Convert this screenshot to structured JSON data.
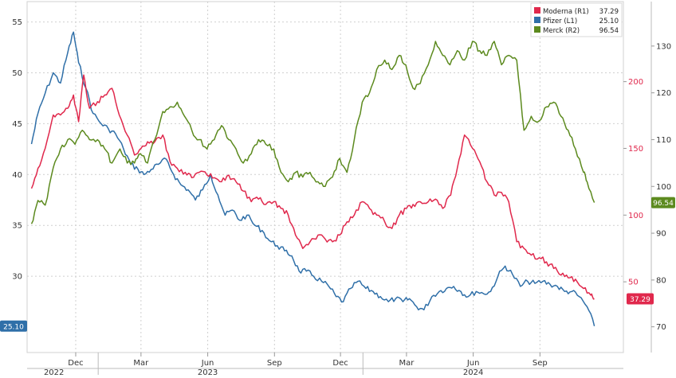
{
  "chart_data": {
    "type": "line",
    "title": "",
    "x_ticks": [
      {
        "date": "2022-12-01",
        "label": "Dec"
      },
      {
        "date": "2023-03-01",
        "label": "Mar"
      },
      {
        "date": "2023-06-01",
        "label": "Jun"
      },
      {
        "date": "2023-09-01",
        "label": "Sep"
      },
      {
        "date": "2023-12-01",
        "label": "Dec"
      },
      {
        "date": "2024-03-01",
        "label": "Mar"
      },
      {
        "date": "2024-06-01",
        "label": "Jun"
      },
      {
        "date": "2024-09-01",
        "label": "Sep"
      }
    ],
    "x_years": [
      {
        "date": "2022-11-01",
        "label": "2022"
      },
      {
        "date": "2023-06-01",
        "label": "2023"
      },
      {
        "date": "2024-06-01",
        "label": "2024"
      }
    ],
    "xlim": [
      "2022-09-25",
      "2024-12-25"
    ],
    "axes": {
      "L1": {
        "ylim": [
          22.5,
          57
        ],
        "ticks": [
          30,
          35,
          40,
          45,
          50,
          55
        ],
        "color": "#2f6fa8"
      },
      "R1": {
        "ylim": [
          -3,
          260
        ],
        "ticks": [
          50,
          100,
          150,
          200
        ],
        "color": "#e0284c"
      },
      "R2": {
        "ylim": [
          64.5,
          139.5
        ],
        "ticks": [
          70,
          80,
          90,
          100,
          110,
          120,
          130
        ],
        "color": "#5c8a1e"
      }
    },
    "legend": {
      "placement": "top-right",
      "items": [
        {
          "name": "Moderna (R1)",
          "value": "37.29",
          "color": "#e0284c"
        },
        {
          "name": "Pfizer (L1)",
          "value": "25.10",
          "color": "#2f6fa8"
        },
        {
          "name": "Merck (R2)",
          "value": "96.54",
          "color": "#5c8a1e"
        }
      ]
    },
    "last_value_tags": [
      {
        "axis": "L1",
        "value": 25.1,
        "label": "25.10",
        "color": "#2f6fa8"
      },
      {
        "axis": "R1",
        "value": 37.29,
        "label": "37.29",
        "color": "#e0284c"
      },
      {
        "axis": "R2",
        "value": 96.54,
        "label": "96.54",
        "color": "#5c8a1e"
      }
    ],
    "grid": true,
    "series": [
      {
        "key": "pfizer",
        "axis": "L1",
        "color": "#2f6fa8",
        "points": [
          [
            "2022-10-01",
            43
          ],
          [
            "2022-10-10",
            46
          ],
          [
            "2022-10-20",
            48
          ],
          [
            "2022-10-31",
            50
          ],
          [
            "2022-11-10",
            49
          ],
          [
            "2022-11-20",
            52
          ],
          [
            "2022-11-28",
            54
          ],
          [
            "2022-12-05",
            51
          ],
          [
            "2022-12-15",
            48.5
          ],
          [
            "2022-12-25",
            46
          ],
          [
            "2023-01-05",
            45
          ],
          [
            "2023-01-15",
            44.5
          ],
          [
            "2023-01-25",
            44
          ],
          [
            "2023-02-05",
            42.5
          ],
          [
            "2023-02-15",
            41
          ],
          [
            "2023-02-25",
            40.5
          ],
          [
            "2023-03-05",
            40
          ],
          [
            "2023-03-15",
            40.5
          ],
          [
            "2023-03-25",
            41
          ],
          [
            "2023-04-05",
            41.5
          ],
          [
            "2023-04-15",
            40
          ],
          [
            "2023-04-25",
            39
          ],
          [
            "2023-05-05",
            38.5
          ],
          [
            "2023-05-15",
            37.5
          ],
          [
            "2023-05-25",
            38.5
          ],
          [
            "2023-06-05",
            40
          ],
          [
            "2023-06-15",
            38
          ],
          [
            "2023-06-25",
            36
          ],
          [
            "2023-07-05",
            36.5
          ],
          [
            "2023-07-15",
            35.5
          ],
          [
            "2023-07-25",
            36
          ],
          [
            "2023-08-05",
            35
          ],
          [
            "2023-08-15",
            34.5
          ],
          [
            "2023-08-25",
            33.5
          ],
          [
            "2023-09-05",
            33
          ],
          [
            "2023-09-15",
            32.5
          ],
          [
            "2023-09-25",
            32
          ],
          [
            "2023-10-05",
            30.5
          ],
          [
            "2023-10-15",
            30.5
          ],
          [
            "2023-10-25",
            30
          ],
          [
            "2023-11-05",
            29.5
          ],
          [
            "2023-11-15",
            29
          ],
          [
            "2023-11-25",
            28
          ],
          [
            "2023-12-05",
            27.5
          ],
          [
            "2023-12-15",
            28.8
          ],
          [
            "2023-12-25",
            29.5
          ],
          [
            "2024-01-05",
            28.8
          ],
          [
            "2024-01-15",
            28.5
          ],
          [
            "2024-01-25",
            28
          ],
          [
            "2024-02-05",
            27.5
          ],
          [
            "2024-02-15",
            27.8
          ],
          [
            "2024-02-25",
            27.5
          ],
          [
            "2024-03-05",
            27.8
          ],
          [
            "2024-03-15",
            27
          ],
          [
            "2024-03-25",
            26.7
          ],
          [
            "2024-04-05",
            28
          ],
          [
            "2024-04-15",
            28.5
          ],
          [
            "2024-04-25",
            28.8
          ],
          [
            "2024-05-05",
            29
          ],
          [
            "2024-05-15",
            28.5
          ],
          [
            "2024-05-25",
            28
          ],
          [
            "2024-06-05",
            28.5
          ],
          [
            "2024-06-15",
            28.3
          ],
          [
            "2024-06-25",
            28.5
          ],
          [
            "2024-07-05",
            30
          ],
          [
            "2024-07-15",
            31
          ],
          [
            "2024-07-25",
            30.2
          ],
          [
            "2024-08-05",
            29
          ],
          [
            "2024-08-15",
            29.5
          ],
          [
            "2024-08-25",
            29.3
          ],
          [
            "2024-09-05",
            29.5
          ],
          [
            "2024-09-15",
            29.2
          ],
          [
            "2024-09-25",
            29
          ],
          [
            "2024-10-05",
            28.5
          ],
          [
            "2024-10-15",
            28.5
          ],
          [
            "2024-10-25",
            28
          ],
          [
            "2024-11-05",
            27
          ],
          [
            "2024-11-15",
            25.1
          ]
        ]
      },
      {
        "key": "moderna",
        "axis": "R1",
        "color": "#e0284c",
        "points": [
          [
            "2022-10-01",
            120
          ],
          [
            "2022-10-10",
            135
          ],
          [
            "2022-10-20",
            150
          ],
          [
            "2022-10-31",
            175
          ],
          [
            "2022-11-10",
            175
          ],
          [
            "2022-11-20",
            180
          ],
          [
            "2022-11-28",
            190
          ],
          [
            "2022-12-05",
            170
          ],
          [
            "2022-12-12",
            205
          ],
          [
            "2022-12-20",
            180
          ],
          [
            "2022-12-31",
            185
          ],
          [
            "2023-01-10",
            190
          ],
          [
            "2023-01-20",
            195
          ],
          [
            "2023-01-30",
            175
          ],
          [
            "2023-02-10",
            160
          ],
          [
            "2023-02-20",
            145
          ],
          [
            "2023-03-01",
            150
          ],
          [
            "2023-03-10",
            155
          ],
          [
            "2023-03-20",
            155
          ],
          [
            "2023-03-31",
            160
          ],
          [
            "2023-04-10",
            140
          ],
          [
            "2023-04-20",
            135
          ],
          [
            "2023-05-01",
            132
          ],
          [
            "2023-05-10",
            128
          ],
          [
            "2023-05-20",
            132
          ],
          [
            "2023-05-31",
            130
          ],
          [
            "2023-06-10",
            128
          ],
          [
            "2023-06-20",
            125
          ],
          [
            "2023-06-30",
            130
          ],
          [
            "2023-07-10",
            125
          ],
          [
            "2023-07-20",
            118
          ],
          [
            "2023-07-31",
            110
          ],
          [
            "2023-08-10",
            112
          ],
          [
            "2023-08-20",
            108
          ],
          [
            "2023-08-31",
            110
          ],
          [
            "2023-09-10",
            105
          ],
          [
            "2023-09-20",
            100
          ],
          [
            "2023-09-30",
            85
          ],
          [
            "2023-10-10",
            75
          ],
          [
            "2023-10-20",
            80
          ],
          [
            "2023-10-31",
            85
          ],
          [
            "2023-11-10",
            82
          ],
          [
            "2023-11-20",
            80
          ],
          [
            "2023-11-30",
            85
          ],
          [
            "2023-12-10",
            95
          ],
          [
            "2023-12-20",
            100
          ],
          [
            "2023-12-31",
            110
          ],
          [
            "2024-01-10",
            105
          ],
          [
            "2024-01-20",
            100
          ],
          [
            "2024-01-31",
            95
          ],
          [
            "2024-02-10",
            90
          ],
          [
            "2024-02-20",
            100
          ],
          [
            "2024-03-01",
            105
          ],
          [
            "2024-03-10",
            108
          ],
          [
            "2024-03-20",
            110
          ],
          [
            "2024-03-31",
            110
          ],
          [
            "2024-04-10",
            112
          ],
          [
            "2024-04-20",
            105
          ],
          [
            "2024-05-01",
            115
          ],
          [
            "2024-05-10",
            135
          ],
          [
            "2024-05-20",
            160
          ],
          [
            "2024-05-31",
            150
          ],
          [
            "2024-06-10",
            140
          ],
          [
            "2024-06-20",
            125
          ],
          [
            "2024-06-30",
            115
          ],
          [
            "2024-07-10",
            117
          ],
          [
            "2024-07-20",
            110
          ],
          [
            "2024-07-31",
            80
          ],
          [
            "2024-08-10",
            75
          ],
          [
            "2024-08-20",
            70
          ],
          [
            "2024-08-31",
            68
          ],
          [
            "2024-09-10",
            65
          ],
          [
            "2024-09-20",
            60
          ],
          [
            "2024-09-30",
            55
          ],
          [
            "2024-10-10",
            53
          ],
          [
            "2024-10-20",
            52
          ],
          [
            "2024-10-31",
            45
          ],
          [
            "2024-11-10",
            40
          ],
          [
            "2024-11-15",
            37.29
          ]
        ]
      },
      {
        "key": "merck",
        "axis": "R2",
        "color": "#5c8a1e",
        "points": [
          [
            "2022-10-01",
            92
          ],
          [
            "2022-10-10",
            97
          ],
          [
            "2022-10-20",
            96
          ],
          [
            "2022-10-31",
            104
          ],
          [
            "2022-11-10",
            108
          ],
          [
            "2022-11-20",
            110
          ],
          [
            "2022-11-30",
            109
          ],
          [
            "2022-12-10",
            112
          ],
          [
            "2022-12-20",
            110
          ],
          [
            "2022-12-31",
            110
          ],
          [
            "2023-01-10",
            108
          ],
          [
            "2023-01-20",
            105
          ],
          [
            "2023-01-31",
            108
          ],
          [
            "2023-02-10",
            105
          ],
          [
            "2023-02-20",
            105
          ],
          [
            "2023-02-28",
            107
          ],
          [
            "2023-03-10",
            105
          ],
          [
            "2023-03-20",
            110
          ],
          [
            "2023-03-31",
            116
          ],
          [
            "2023-04-10",
            117
          ],
          [
            "2023-04-20",
            118
          ],
          [
            "2023-04-30",
            115
          ],
          [
            "2023-05-10",
            112
          ],
          [
            "2023-05-20",
            110
          ],
          [
            "2023-05-31",
            108
          ],
          [
            "2023-06-10",
            110
          ],
          [
            "2023-06-20",
            113
          ],
          [
            "2023-06-30",
            110
          ],
          [
            "2023-07-10",
            108
          ],
          [
            "2023-07-20",
            105
          ],
          [
            "2023-07-31",
            107
          ],
          [
            "2023-08-10",
            110
          ],
          [
            "2023-08-20",
            109
          ],
          [
            "2023-08-31",
            108
          ],
          [
            "2023-09-10",
            103
          ],
          [
            "2023-09-20",
            101
          ],
          [
            "2023-09-30",
            103
          ],
          [
            "2023-10-10",
            102
          ],
          [
            "2023-10-20",
            103
          ],
          [
            "2023-10-31",
            101
          ],
          [
            "2023-11-10",
            100
          ],
          [
            "2023-11-20",
            102
          ],
          [
            "2023-11-30",
            106
          ],
          [
            "2023-12-10",
            103
          ],
          [
            "2023-12-20",
            110
          ],
          [
            "2023-12-31",
            118
          ],
          [
            "2024-01-10",
            120
          ],
          [
            "2024-01-20",
            125
          ],
          [
            "2024-01-31",
            127
          ],
          [
            "2024-02-10",
            125
          ],
          [
            "2024-02-20",
            128
          ],
          [
            "2024-02-29",
            126
          ],
          [
            "2024-03-10",
            121
          ],
          [
            "2024-03-20",
            122
          ],
          [
            "2024-03-31",
            126
          ],
          [
            "2024-04-10",
            131
          ],
          [
            "2024-04-20",
            128
          ],
          [
            "2024-04-30",
            126
          ],
          [
            "2024-05-10",
            129
          ],
          [
            "2024-05-20",
            127
          ],
          [
            "2024-05-31",
            131
          ],
          [
            "2024-06-10",
            129
          ],
          [
            "2024-06-20",
            128
          ],
          [
            "2024-06-30",
            131
          ],
          [
            "2024-07-10",
            126
          ],
          [
            "2024-07-20",
            128
          ],
          [
            "2024-07-31",
            127
          ],
          [
            "2024-08-10",
            112
          ],
          [
            "2024-08-20",
            115
          ],
          [
            "2024-08-31",
            114
          ],
          [
            "2024-09-10",
            117
          ],
          [
            "2024-09-20",
            118
          ],
          [
            "2024-09-30",
            115
          ],
          [
            "2024-10-10",
            112
          ],
          [
            "2024-10-20",
            108
          ],
          [
            "2024-10-31",
            103
          ],
          [
            "2024-11-05",
            101
          ],
          [
            "2024-11-15",
            96.54
          ]
        ]
      }
    ]
  }
}
